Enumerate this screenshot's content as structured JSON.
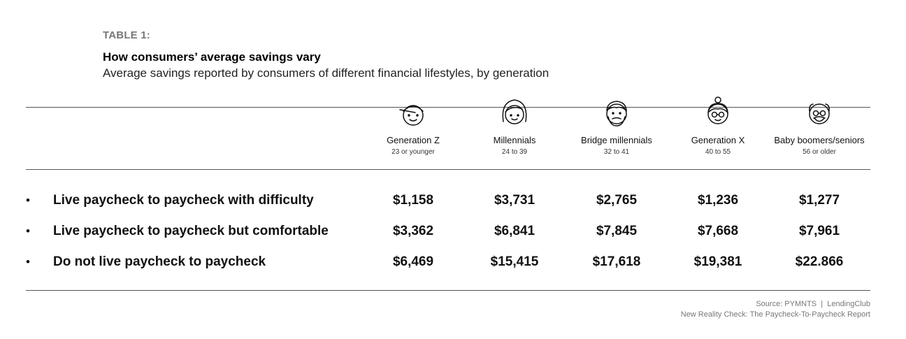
{
  "header": {
    "tag": "TABLE 1:",
    "title": "How consumers’ average savings vary",
    "subtitle": "Average savings reported by consumers of different financial lifestyles, by generation"
  },
  "chart_data": {
    "type": "table",
    "columns": [
      {
        "name": "Generation Z",
        "age": "23 or younger",
        "icon": "young-face-cap-icon"
      },
      {
        "name": "Millennials",
        "age": "24 to 39",
        "icon": "woman-face-icon"
      },
      {
        "name": "Bridge millennials",
        "age": "32 to 41",
        "icon": "bearded-man-face-icon"
      },
      {
        "name": "Generation X",
        "age": "40 to 55",
        "icon": "woman-bun-glasses-face-icon"
      },
      {
        "name": "Baby boomers/seniors",
        "age": "56 or older",
        "icon": "senior-glasses-face-icon"
      }
    ],
    "rows": [
      {
        "bullet": "•",
        "label": "Live paycheck to paycheck with difficulty",
        "values": [
          "$1,158",
          "$3,731",
          "$2,765",
          "$1,236",
          "$1,277"
        ]
      },
      {
        "bullet": "•",
        "label": "Live paycheck to paycheck but comfortable",
        "values": [
          "$3,362",
          "$6,841",
          "$7,845",
          "$7,668",
          "$7,961"
        ]
      },
      {
        "bullet": "•",
        "label": "Do not live paycheck to paycheck",
        "values": [
          "$6,469",
          "$15,415",
          "$17,618",
          "$19,381",
          "$22.866"
        ]
      }
    ]
  },
  "source": {
    "line1": "Source: PYMNTS  |  LendingClub",
    "line2": "New Reality Check: The Paycheck-To-Paycheck Report"
  }
}
